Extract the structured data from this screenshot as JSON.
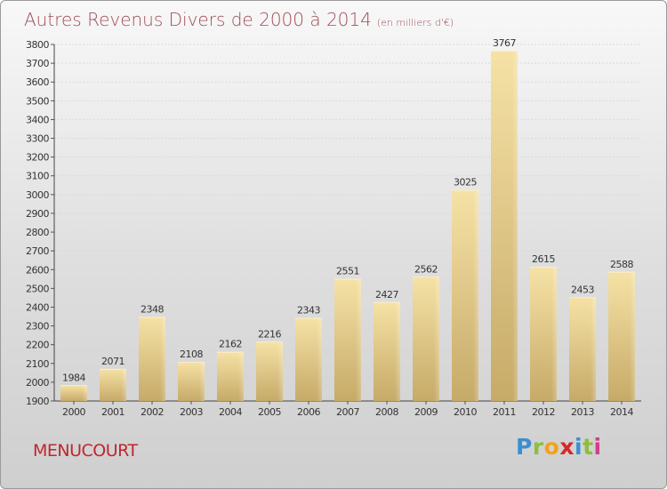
{
  "title": "Autres Revenus Divers de 2000 à 2014",
  "subtitle": "(en milliers d'€)",
  "city": "MENUCOURT",
  "logo": {
    "letters": [
      "P",
      "r",
      "o",
      "x",
      "i",
      "t",
      "i"
    ],
    "colors": [
      "#3a8fd1",
      "#8cbf3f",
      "#f2a21a",
      "#d9262a",
      "#3a8fd1",
      "#8cbf3f",
      "#d23d8c"
    ]
  },
  "colors": {
    "title": "#a04d58",
    "bar_light": "#f5dfa0",
    "bar_dark": "#c8ad6a",
    "city": "#c0262e"
  },
  "chart_data": {
    "type": "bar",
    "categories": [
      "2000",
      "2001",
      "2002",
      "2003",
      "2004",
      "2005",
      "2006",
      "2007",
      "2008",
      "2009",
      "2010",
      "2011",
      "2012",
      "2013",
      "2014"
    ],
    "values": [
      1984,
      2071,
      2348,
      2108,
      2162,
      2216,
      2343,
      2551,
      2427,
      2562,
      3025,
      3767,
      2615,
      2453,
      2588
    ],
    "ylim": [
      1900,
      3800
    ],
    "yticks": [
      1900,
      2000,
      2100,
      2200,
      2300,
      2400,
      2500,
      2600,
      2700,
      2800,
      2900,
      3000,
      3100,
      3200,
      3300,
      3400,
      3500,
      3600,
      3700,
      3800
    ],
    "grid": true,
    "data_labels": true
  }
}
